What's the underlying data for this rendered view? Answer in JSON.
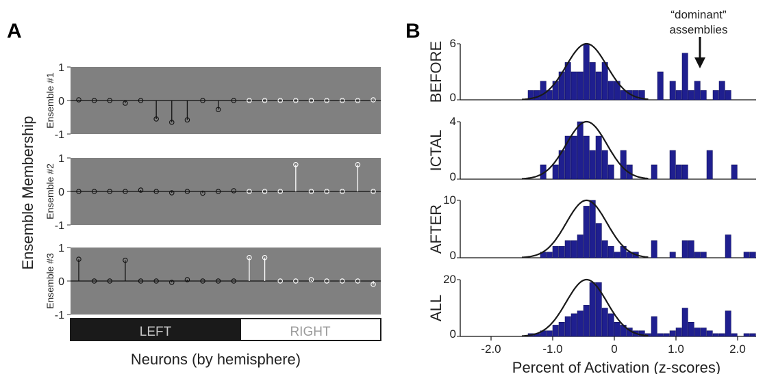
{
  "panel_labels": {
    "a": "A",
    "b": "B"
  },
  "colors": {
    "panel_bg": "#808080",
    "left_stem": "#111111",
    "right_stem": "#ffffff",
    "bar_fill": "#1f1f8f",
    "curve": "#1a1a1a",
    "left_bar": "#1a1a1a",
    "right_bar": "#ffffff"
  },
  "panel_a": {
    "ylabel": "Ensemble Membership",
    "xlabel": "Neurons (by hemisphere)",
    "hemispheres": {
      "left": "LEFT",
      "right": "RIGHT"
    }
  },
  "panel_b": {
    "xlabel": "Percent of Activation (z-scores)",
    "annotation_line1": "“dominant”",
    "annotation_line2": "assemblies",
    "xticks": [
      "-2.0",
      "-1.0",
      "0",
      "1.0",
      "2.0"
    ]
  },
  "chart_data": [
    {
      "type": "stem",
      "title": "",
      "ylabel": "Ensemble #1",
      "ylim": [
        -1,
        1
      ],
      "yticks": [
        "1",
        "0",
        "-1"
      ],
      "n_left": 11,
      "values": [
        0.02,
        0.0,
        0.0,
        -0.08,
        0.0,
        -0.55,
        -0.65,
        -0.58,
        0.0,
        -0.27,
        0.0,
        0.0,
        0.0,
        0.0,
        0.0,
        0.0,
        0.0,
        0.0,
        0.0,
        0.02
      ]
    },
    {
      "type": "stem",
      "title": "",
      "ylabel": "Ensemble #2",
      "ylim": [
        -1,
        1
      ],
      "yticks": [
        "1",
        "0",
        "-1"
      ],
      "n_left": 11,
      "values": [
        0.0,
        0.0,
        0.0,
        0.0,
        0.04,
        0.0,
        -0.04,
        0.0,
        -0.05,
        0.0,
        0.02,
        0.0,
        0.0,
        0.0,
        0.8,
        0.0,
        0.0,
        0.0,
        0.8,
        0.0
      ]
    },
    {
      "type": "stem",
      "title": "",
      "ylabel": "Ensemble #3",
      "ylim": [
        -1,
        1
      ],
      "yticks": [
        "1",
        "0",
        "-1"
      ],
      "n_left": 11,
      "values": [
        0.65,
        0.0,
        0.0,
        0.62,
        0.0,
        0.0,
        -0.04,
        0.04,
        0.0,
        0.0,
        0.0,
        0.7,
        0.7,
        0.0,
        0.0,
        0.04,
        0.0,
        0.0,
        0.0,
        -0.1
      ]
    },
    {
      "type": "bar",
      "title": "",
      "ylabel": "BEFORE",
      "ymax": 6,
      "yticks": [
        "0",
        "6"
      ],
      "xlim": [
        -2.5,
        2.3
      ],
      "bin_width": 0.1,
      "bins": [
        [
          -1.4,
          1
        ],
        [
          -1.3,
          1
        ],
        [
          -1.2,
          2
        ],
        [
          -1.1,
          1
        ],
        [
          -1.0,
          2
        ],
        [
          -0.9,
          3
        ],
        [
          -0.8,
          4
        ],
        [
          -0.7,
          3
        ],
        [
          -0.6,
          3
        ],
        [
          -0.5,
          6
        ],
        [
          -0.4,
          4
        ],
        [
          -0.3,
          3
        ],
        [
          -0.2,
          4
        ],
        [
          -0.1,
          2
        ],
        [
          0.0,
          2
        ],
        [
          0.1,
          1
        ],
        [
          0.2,
          1
        ],
        [
          0.3,
          1
        ],
        [
          0.4,
          1
        ],
        [
          0.7,
          3
        ],
        [
          0.9,
          2
        ],
        [
          1.0,
          1
        ],
        [
          1.1,
          5
        ],
        [
          1.2,
          1
        ],
        [
          1.3,
          2
        ],
        [
          1.4,
          1
        ],
        [
          1.6,
          1
        ],
        [
          1.7,
          2
        ],
        [
          1.8,
          1
        ]
      ]
    },
    {
      "type": "bar",
      "title": "",
      "ylabel": "ICTAL",
      "ymax": 4,
      "yticks": [
        "0",
        "4"
      ],
      "xlim": [
        -2.5,
        2.3
      ],
      "bin_width": 0.1,
      "bins": [
        [
          -1.2,
          1
        ],
        [
          -1.0,
          1
        ],
        [
          -0.9,
          2
        ],
        [
          -0.8,
          3
        ],
        [
          -0.7,
          3
        ],
        [
          -0.6,
          4
        ],
        [
          -0.5,
          3
        ],
        [
          -0.4,
          2
        ],
        [
          -0.3,
          3
        ],
        [
          -0.2,
          2
        ],
        [
          -0.1,
          1
        ],
        [
          0.1,
          2
        ],
        [
          0.2,
          1
        ],
        [
          0.6,
          1
        ],
        [
          0.9,
          2
        ],
        [
          1.0,
          1
        ],
        [
          1.1,
          1
        ],
        [
          1.5,
          2
        ],
        [
          1.9,
          1
        ]
      ]
    },
    {
      "type": "bar",
      "title": "",
      "ylabel": "AFTER",
      "ymax": 10,
      "yticks": [
        "0",
        "10"
      ],
      "xlim": [
        -2.5,
        2.3
      ],
      "bin_width": 0.1,
      "bins": [
        [
          -1.2,
          1
        ],
        [
          -1.1,
          1
        ],
        [
          -1.0,
          2
        ],
        [
          -0.9,
          2
        ],
        [
          -0.8,
          3
        ],
        [
          -0.7,
          3
        ],
        [
          -0.6,
          4
        ],
        [
          -0.5,
          9
        ],
        [
          -0.4,
          10
        ],
        [
          -0.3,
          6
        ],
        [
          -0.2,
          3
        ],
        [
          -0.1,
          2
        ],
        [
          0.0,
          1
        ],
        [
          0.1,
          2
        ],
        [
          0.2,
          1
        ],
        [
          0.3,
          1
        ],
        [
          0.6,
          3
        ],
        [
          0.9,
          1
        ],
        [
          1.1,
          3
        ],
        [
          1.2,
          3
        ],
        [
          1.3,
          1
        ],
        [
          1.4,
          1
        ],
        [
          1.8,
          4
        ],
        [
          2.1,
          1
        ],
        [
          2.2,
          1
        ]
      ]
    },
    {
      "type": "bar",
      "title": "",
      "ylabel": "ALL",
      "ymax": 20,
      "yticks": [
        "0",
        "20"
      ],
      "xlim": [
        -2.5,
        2.3
      ],
      "bin_width": 0.1,
      "bins": [
        [
          -1.4,
          1
        ],
        [
          -1.3,
          1
        ],
        [
          -1.2,
          2
        ],
        [
          -1.1,
          2
        ],
        [
          -1.0,
          4
        ],
        [
          -0.9,
          5
        ],
        [
          -0.8,
          7
        ],
        [
          -0.7,
          8
        ],
        [
          -0.6,
          9
        ],
        [
          -0.5,
          11
        ],
        [
          -0.4,
          19
        ],
        [
          -0.3,
          19
        ],
        [
          -0.2,
          10
        ],
        [
          -0.1,
          8
        ],
        [
          0.0,
          5
        ],
        [
          0.1,
          4
        ],
        [
          0.2,
          3
        ],
        [
          0.3,
          2
        ],
        [
          0.4,
          2
        ],
        [
          0.5,
          1
        ],
        [
          0.6,
          7
        ],
        [
          0.7,
          1
        ],
        [
          0.8,
          1
        ],
        [
          0.9,
          2
        ],
        [
          1.0,
          3
        ],
        [
          1.1,
          10
        ],
        [
          1.2,
          5
        ],
        [
          1.3,
          3
        ],
        [
          1.4,
          3
        ],
        [
          1.5,
          2
        ],
        [
          1.6,
          1
        ],
        [
          1.7,
          1
        ],
        [
          1.8,
          9
        ],
        [
          1.9,
          1
        ],
        [
          2.1,
          1
        ],
        [
          2.2,
          1
        ]
      ]
    }
  ]
}
